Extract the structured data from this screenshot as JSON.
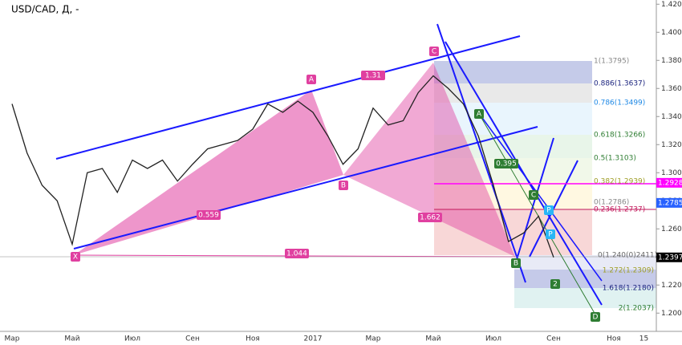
{
  "symbol": "USD/CAD, Д, -",
  "chart_data": {
    "type": "line",
    "categories": [
      "Мар",
      null,
      null,
      null,
      "Май",
      null,
      null,
      null,
      "Июл",
      null,
      null,
      null,
      "Сен",
      null,
      null,
      null,
      "Ноя",
      null,
      null,
      null,
      "2017",
      null,
      null,
      null,
      "Мар",
      null,
      null,
      null,
      "Май",
      null,
      null,
      null,
      "Июл",
      null,
      null,
      null,
      "Сен",
      null,
      null,
      null,
      "Ноя",
      null,
      "15"
    ],
    "values": [
      1.349,
      1.314,
      1.291,
      1.28,
      1.249,
      1.3,
      1.303,
      1.286,
      1.309,
      1.303,
      1.309,
      1.294,
      1.306,
      1.317,
      1.32,
      1.323,
      1.331,
      1.349,
      1.343,
      1.351,
      1.343,
      1.326,
      1.306,
      1.317,
      1.346,
      1.334,
      1.337,
      1.357,
      1.369,
      1.36,
      1.349,
      1.326,
      1.291,
      1.251,
      1.257,
      1.269,
      1.2397,
      null,
      null,
      null,
      null,
      null,
      null
    ],
    "color": "#222222",
    "ylim": [
      1.187,
      1.423
    ],
    "yticks": [
      {
        "value": 1.42,
        "label": "1.4200"
      },
      {
        "value": 1.4,
        "label": "1.4000"
      },
      {
        "value": 1.38,
        "label": "1.3800"
      },
      {
        "value": 1.36,
        "label": "1.3600"
      },
      {
        "value": 1.34,
        "label": "1.3400"
      },
      {
        "value": 1.32,
        "label": "1.3200"
      },
      {
        "value": 1.3,
        "label": "1.3000"
      },
      {
        "value": 1.28,
        "label": "1.2800"
      },
      {
        "value": 1.26,
        "label": "1.2600"
      },
      {
        "value": 1.24,
        "label": "1.2400"
      },
      {
        "value": 1.22,
        "label": "1.2200"
      },
      {
        "value": 1.2,
        "label": "1.2000"
      }
    ],
    "price_tags": [
      {
        "value": 1.2928,
        "color": "#ff00ff"
      },
      {
        "value": 1.2785,
        "color": "#2962ff"
      },
      {
        "value": 1.2397,
        "color": "#000000"
      }
    ]
  },
  "annotations": [
    "X",
    "A",
    "B",
    "C",
    "1.31",
    "0.559",
    "1.044",
    "1.662",
    "0.395",
    "A",
    "B",
    "C",
    "2",
    "D",
    "P",
    "P"
  ],
  "fib_labels": [
    "1(1.3795)",
    "0.886(1.3637)",
    "0.786(1.3499)",
    "0.618(1.3266)",
    "0.5(1.3103)",
    "0.382(1.2939)",
    "0(1.2786)",
    "0.236(1.2737)",
    "0(1.240(0)2411)",
    "1.272(1.2309)",
    "1.618(1.2180)",
    "2(1.2037)"
  ]
}
